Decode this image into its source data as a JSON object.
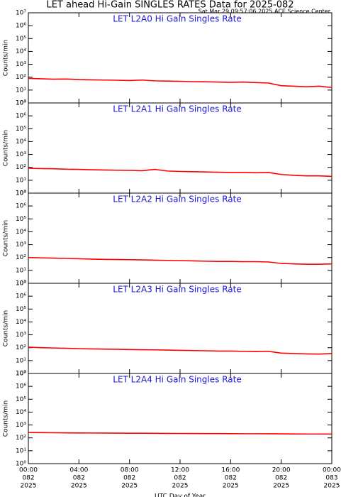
{
  "header": {
    "title": "LET ahead Hi-Gain SINGLES RATES Data for 2025-082",
    "subtitle": "Sat Mar 29 09:57:06 2025 ACE Science Center"
  },
  "chart_data": [
    {
      "type": "line",
      "title": "LET L2A0 Hi Gain Singles Rate",
      "ylabel": "Counts/min",
      "yscale": "log",
      "color": "#ff0000",
      "x": [
        0,
        1,
        2,
        3,
        4,
        5,
        6,
        7,
        8,
        9,
        10,
        11,
        12,
        13,
        14,
        15,
        16,
        17,
        18,
        19,
        20,
        21,
        22,
        23,
        24
      ],
      "values": [
        80,
        75,
        70,
        72,
        65,
        62,
        60,
        58,
        55,
        60,
        52,
        50,
        48,
        45,
        44,
        42,
        40,
        42,
        38,
        35,
        22,
        20,
        18,
        20,
        16
      ],
      "xlim": [
        0,
        24
      ],
      "ylim": [
        1,
        10000000
      ],
      "yticks": [
        {
          "value": 1,
          "label": "10⁰"
        },
        {
          "value": 10,
          "label": "10¹"
        },
        {
          "value": 100,
          "label": "10²"
        },
        {
          "value": 1000,
          "label": "10³"
        },
        {
          "value": 10000,
          "label": "10⁴"
        },
        {
          "value": 100000,
          "label": "10⁵"
        },
        {
          "value": 1000000,
          "label": "10⁶"
        },
        {
          "value": 10000000,
          "label": "10⁷"
        }
      ]
    },
    {
      "type": "line",
      "title": "LET L2A1 Hi Gain Singles Rate",
      "ylabel": "Counts/min",
      "yscale": "log",
      "color": "#ff0000",
      "x": [
        0,
        1,
        2,
        3,
        4,
        5,
        6,
        7,
        8,
        9,
        10,
        11,
        12,
        13,
        14,
        15,
        16,
        17,
        18,
        19,
        20,
        21,
        22,
        23,
        24
      ],
      "values": [
        85,
        80,
        78,
        72,
        70,
        65,
        62,
        60,
        58,
        55,
        70,
        52,
        48,
        46,
        44,
        42,
        40,
        40,
        38,
        40,
        28,
        24,
        22,
        22,
        20
      ],
      "xlim": [
        0,
        24
      ],
      "ylim": [
        1,
        10000000
      ],
      "yticks": [
        {
          "value": 1,
          "label": "10⁰"
        },
        {
          "value": 10,
          "label": "10¹"
        },
        {
          "value": 100,
          "label": "10²"
        },
        {
          "value": 1000,
          "label": "10³"
        },
        {
          "value": 10000,
          "label": "10⁴"
        },
        {
          "value": 100000,
          "label": "10⁵"
        },
        {
          "value": 1000000,
          "label": "10⁶"
        },
        {
          "value": 10000000,
          "label": "10⁷"
        }
      ]
    },
    {
      "type": "line",
      "title": "LET L2A2 Hi Gain Singles Rate",
      "ylabel": "Counts/min",
      "yscale": "log",
      "color": "#ff0000",
      "x": [
        0,
        1,
        2,
        3,
        4,
        5,
        6,
        7,
        8,
        9,
        10,
        11,
        12,
        13,
        14,
        15,
        16,
        17,
        18,
        19,
        20,
        21,
        22,
        23,
        24
      ],
      "values": [
        100,
        95,
        90,
        85,
        80,
        75,
        72,
        70,
        68,
        65,
        62,
        60,
        58,
        55,
        52,
        50,
        50,
        48,
        48,
        45,
        35,
        32,
        30,
        30,
        32
      ],
      "xlim": [
        0,
        24
      ],
      "ylim": [
        1,
        10000000
      ],
      "yticks": [
        {
          "value": 1,
          "label": "10⁰"
        },
        {
          "value": 10,
          "label": "10¹"
        },
        {
          "value": 100,
          "label": "10²"
        },
        {
          "value": 1000,
          "label": "10³"
        },
        {
          "value": 10000,
          "label": "10⁴"
        },
        {
          "value": 100000,
          "label": "10⁵"
        },
        {
          "value": 1000000,
          "label": "10⁶"
        },
        {
          "value": 10000000,
          "label": "10⁷"
        }
      ]
    },
    {
      "type": "line",
      "title": "LET L2A3 Hi Gain Singles Rate",
      "ylabel": "Counts/min",
      "yscale": "log",
      "color": "#ff0000",
      "x": [
        0,
        1,
        2,
        3,
        4,
        5,
        6,
        7,
        8,
        9,
        10,
        11,
        12,
        13,
        14,
        15,
        16,
        17,
        18,
        19,
        20,
        21,
        22,
        23,
        24
      ],
      "values": [
        110,
        100,
        95,
        90,
        85,
        80,
        78,
        75,
        72,
        70,
        68,
        65,
        62,
        60,
        58,
        55,
        55,
        52,
        50,
        52,
        38,
        35,
        33,
        32,
        35
      ],
      "xlim": [
        0,
        24
      ],
      "ylim": [
        1,
        10000000
      ],
      "yticks": [
        {
          "value": 1,
          "label": "10⁰"
        },
        {
          "value": 10,
          "label": "10¹"
        },
        {
          "value": 100,
          "label": "10²"
        },
        {
          "value": 1000,
          "label": "10³"
        },
        {
          "value": 10000,
          "label": "10⁴"
        },
        {
          "value": 100000,
          "label": "10⁵"
        },
        {
          "value": 1000000,
          "label": "10⁶"
        },
        {
          "value": 10000000,
          "label": "10⁷"
        }
      ]
    },
    {
      "type": "line",
      "title": "LET L2A4 Hi Gain Singles Rate",
      "ylabel": "Counts/min",
      "yscale": "log",
      "color": "#ff0000",
      "x": [
        0,
        1,
        2,
        3,
        4,
        5,
        6,
        7,
        8,
        9,
        10,
        11,
        12,
        13,
        14,
        15,
        16,
        17,
        18,
        19,
        20,
        21,
        22,
        23,
        24
      ],
      "values": [
        260,
        255,
        250,
        245,
        240,
        238,
        235,
        232,
        230,
        228,
        225,
        222,
        220,
        218,
        216,
        215,
        212,
        210,
        210,
        208,
        205,
        202,
        200,
        200,
        198
      ],
      "xlim": [
        0,
        24
      ],
      "ylim": [
        1,
        10000000
      ],
      "yticks": [
        {
          "value": 1,
          "label": "10⁰"
        },
        {
          "value": 10,
          "label": "10¹"
        },
        {
          "value": 100,
          "label": "10²"
        },
        {
          "value": 1000,
          "label": "10³"
        },
        {
          "value": 10000,
          "label": "10⁴"
        },
        {
          "value": 100000,
          "label": "10⁵"
        },
        {
          "value": 1000000,
          "label": "10⁶"
        },
        {
          "value": 10000000,
          "label": "10⁷"
        }
      ],
      "xlabel": "UTC Day of Year",
      "xticks": [
        {
          "value": 0,
          "label": [
            "00:00",
            "082",
            "2025"
          ]
        },
        {
          "value": 4,
          "label": [
            "04:00",
            "082",
            "2025"
          ]
        },
        {
          "value": 8,
          "label": [
            "08:00",
            "082",
            "2025"
          ]
        },
        {
          "value": 12,
          "label": [
            "12:00",
            "082",
            "2025"
          ]
        },
        {
          "value": 16,
          "label": [
            "16:00",
            "082",
            "2025"
          ]
        },
        {
          "value": 20,
          "label": [
            "20:00",
            "082",
            "2025"
          ]
        },
        {
          "value": 24,
          "label": [
            "00:00",
            "083",
            "2025"
          ]
        }
      ]
    }
  ]
}
